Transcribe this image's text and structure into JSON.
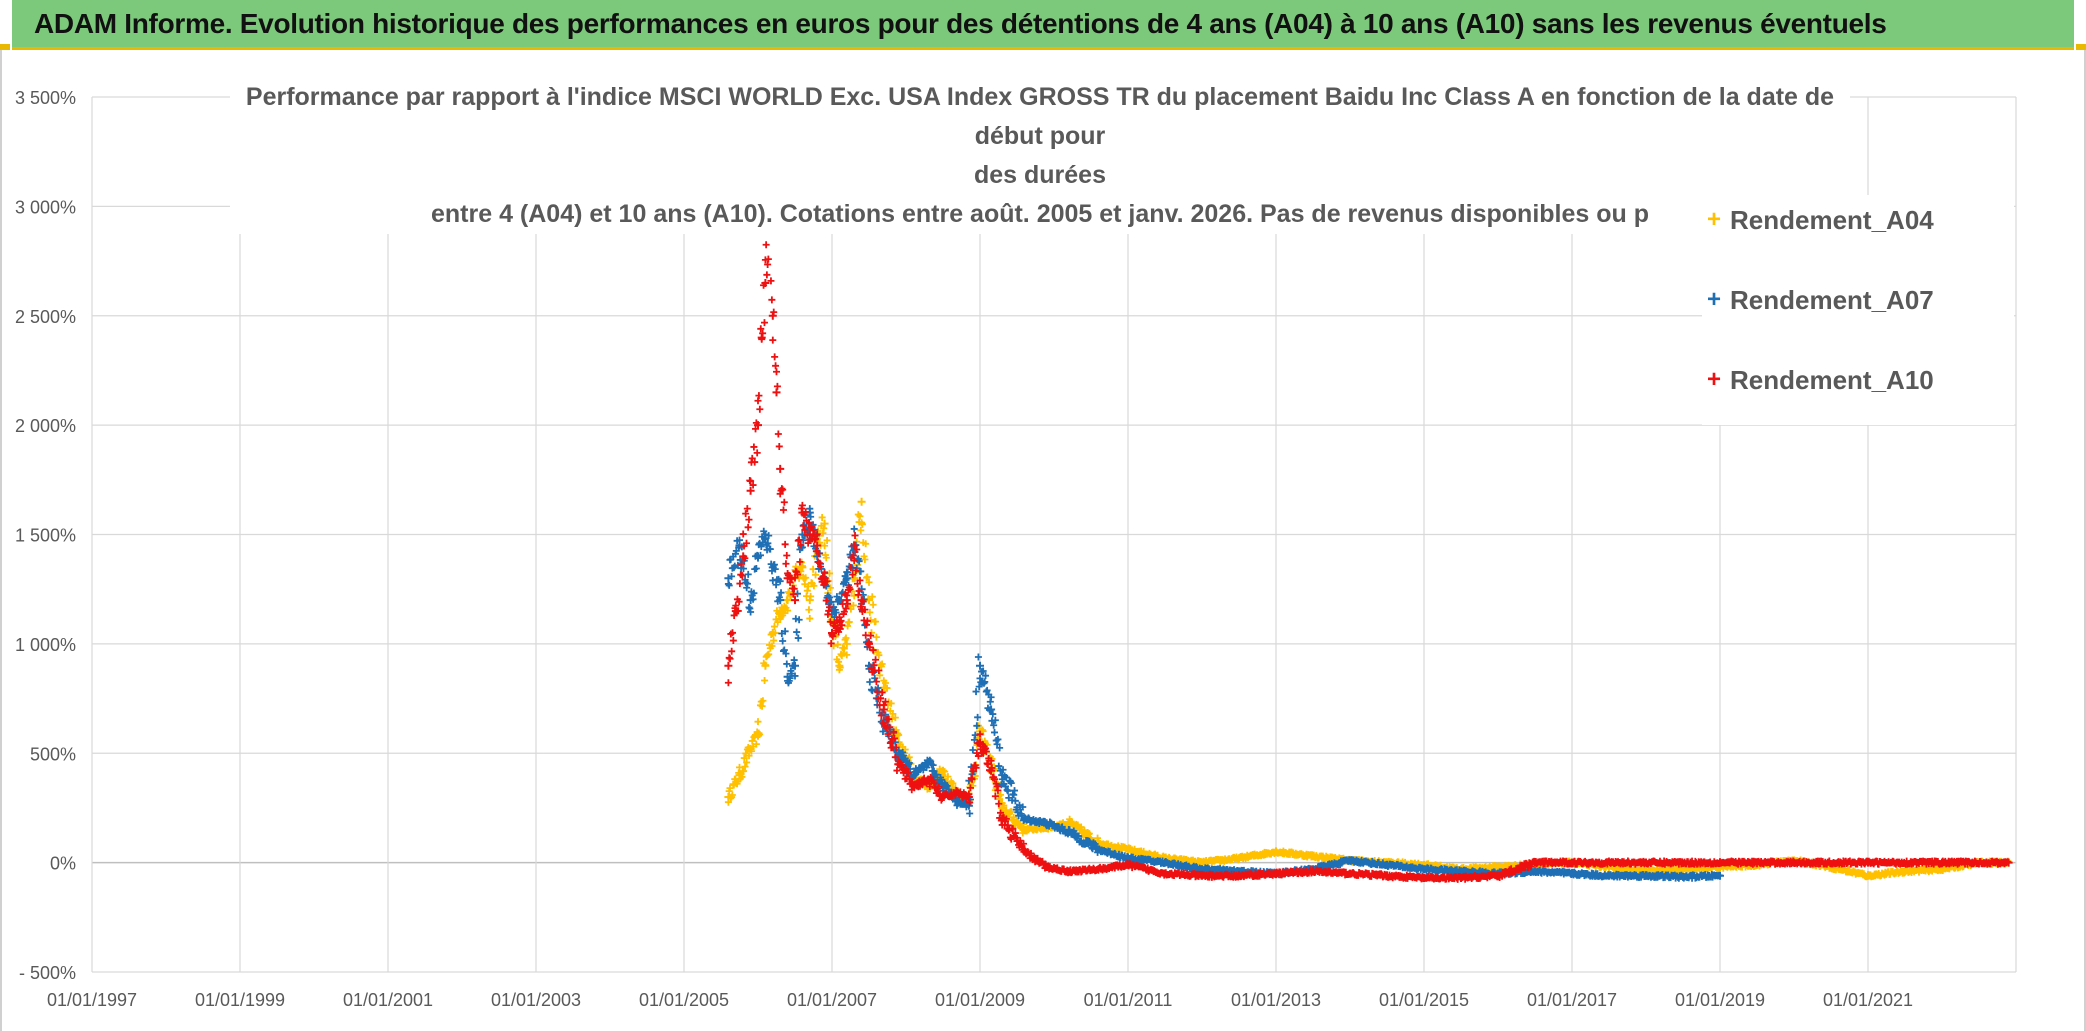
{
  "banner": {
    "title": "ADAM Informe. Evolution historique des performances en euros pour des détentions de 4 ans (A04) à 10 ans (A10) sans les revenus éventuels"
  },
  "colors": {
    "banner_bg": "#7dc97b",
    "accent": "#e9b800",
    "series_A04": "#ffc000",
    "series_A07": "#1f6fb5",
    "series_A10": "#ee1111",
    "grid": "#d9d9d9",
    "text": "#595959"
  },
  "chart_data": {
    "type": "scatter",
    "title_lines": [
      "Performance par rapport à l'indice MSCI WORLD Exc. USA Index GROSS TR  du placement Baidu Inc Class A en fonction de la date de début pour",
      "des durées",
      "entre 4 (A04) et 10 ans (A10). Cotations entre août. 2005 et janv. 2026. Pas de revenus disponibles ou p"
    ],
    "xlabel": "",
    "ylabel": "",
    "x_ticks": [
      "01/01/1997",
      "01/01/1999",
      "01/01/2001",
      "01/01/2003",
      "01/01/2005",
      "01/01/2007",
      "01/01/2009",
      "01/01/2011",
      "01/01/2013",
      "01/01/2015",
      "01/01/2017",
      "01/01/2019",
      "01/01/2021"
    ],
    "xlim": [
      1997.0,
      2023.0
    ],
    "y_ticks": [
      "3 500%",
      "3 000%",
      "2 500%",
      "2 000%",
      "1 500%",
      "1 000%",
      "500%",
      "0%",
      "- 500%"
    ],
    "ylim": [
      -500,
      3500
    ],
    "legend_position": "top-right",
    "series": [
      {
        "name": "Rendement_A04",
        "x": [
          2005.6,
          2005.75,
          2005.9,
          2006.0,
          2006.1,
          2006.2,
          2006.3,
          2006.4,
          2006.5,
          2006.6,
          2006.7,
          2006.8,
          2006.9,
          2007.0,
          2007.1,
          2007.2,
          2007.3,
          2007.4,
          2007.5,
          2007.7,
          2007.9,
          2008.1,
          2008.3,
          2008.5,
          2008.7,
          2008.85,
          2009.0,
          2009.15,
          2009.3,
          2009.6,
          2009.9,
          2010.2,
          2010.6,
          2011.0,
          2011.5,
          2012.0,
          2012.5,
          2013.0,
          2013.5,
          2014.0,
          2014.5,
          2015.0,
          2015.5,
          2016.0,
          2016.5,
          2017.0,
          2017.5,
          2018.0,
          2018.5,
          2019.0,
          2019.5,
          2020.0,
          2020.5,
          2021.0,
          2021.5,
          2022.0,
          2022.5,
          2022.9
        ],
        "y": [
          300,
          400,
          520,
          580,
          900,
          1050,
          1150,
          1200,
          1300,
          1350,
          1200,
          1450,
          1550,
          1100,
          900,
          1000,
          1300,
          1650,
          1200,
          800,
          550,
          400,
          350,
          420,
          300,
          280,
          600,
          450,
          250,
          150,
          160,
          180,
          90,
          60,
          20,
          0,
          20,
          50,
          30,
          10,
          0,
          -10,
          -30,
          -20,
          -10,
          0,
          -20,
          -40,
          -30,
          -20,
          -10,
          10,
          -20,
          -60,
          -40,
          -30,
          0,
          0
        ]
      },
      {
        "name": "Rendement_A07",
        "x": [
          2005.6,
          2005.75,
          2005.9,
          2006.0,
          2006.1,
          2006.2,
          2006.3,
          2006.4,
          2006.5,
          2006.6,
          2006.7,
          2006.8,
          2006.9,
          2007.0,
          2007.1,
          2007.2,
          2007.3,
          2007.4,
          2007.5,
          2007.7,
          2007.9,
          2008.1,
          2008.3,
          2008.5,
          2008.7,
          2008.85,
          2009.0,
          2009.15,
          2009.3,
          2009.6,
          2009.9,
          2010.2,
          2010.6,
          2011.0,
          2011.5,
          2012.0,
          2012.5,
          2013.0,
          2013.5,
          2014.0,
          2014.5,
          2015.0,
          2015.5,
          2016.0,
          2016.5,
          2017.0,
          2017.5,
          2018.0,
          2018.5,
          2019.0
        ],
        "y": [
          1300,
          1450,
          1200,
          1400,
          1500,
          1350,
          1200,
          850,
          900,
          1500,
          1600,
          1400,
          1300,
          1150,
          1200,
          1300,
          1450,
          1250,
          900,
          650,
          500,
          400,
          450,
          350,
          280,
          260,
          900,
          700,
          400,
          200,
          180,
          140,
          60,
          20,
          0,
          -30,
          -40,
          -50,
          -30,
          10,
          -10,
          -30,
          -40,
          -50,
          -40,
          -50,
          -60,
          -60,
          -65,
          -60
        ]
      },
      {
        "name": "Rendement_A10",
        "x": [
          2005.6,
          2005.7,
          2005.8,
          2005.9,
          2006.0,
          2006.05,
          2006.1,
          2006.15,
          2006.2,
          2006.25,
          2006.3,
          2006.4,
          2006.5,
          2006.6,
          2006.7,
          2006.8,
          2006.9,
          2007.0,
          2007.1,
          2007.2,
          2007.3,
          2007.4,
          2007.5,
          2007.7,
          2007.9,
          2008.1,
          2008.3,
          2008.5,
          2008.7,
          2008.85,
          2009.0,
          2009.15,
          2009.3,
          2009.6,
          2009.9,
          2010.2,
          2010.6,
          2011.0,
          2011.5,
          2012.0,
          2012.5,
          2013.0,
          2013.5,
          2014.0,
          2014.5,
          2015.0,
          2015.5,
          2016.0,
          2016.5,
          2017.0,
          2018.0,
          2019.0,
          2020.0,
          2021.0,
          2022.0,
          2022.9
        ],
        "y": [
          900,
          1150,
          1400,
          1700,
          2000,
          2400,
          2650,
          2900,
          2500,
          2150,
          1800,
          1300,
          1200,
          1600,
          1500,
          1450,
          1300,
          1050,
          1100,
          1200,
          1450,
          1200,
          1000,
          700,
          450,
          350,
          380,
          300,
          320,
          300,
          550,
          420,
          200,
          50,
          -20,
          -40,
          -30,
          -10,
          -50,
          -60,
          -60,
          -50,
          -40,
          -50,
          -60,
          -70,
          -70,
          -60,
          0,
          0,
          0,
          0,
          0,
          0,
          0,
          0
        ]
      }
    ]
  }
}
